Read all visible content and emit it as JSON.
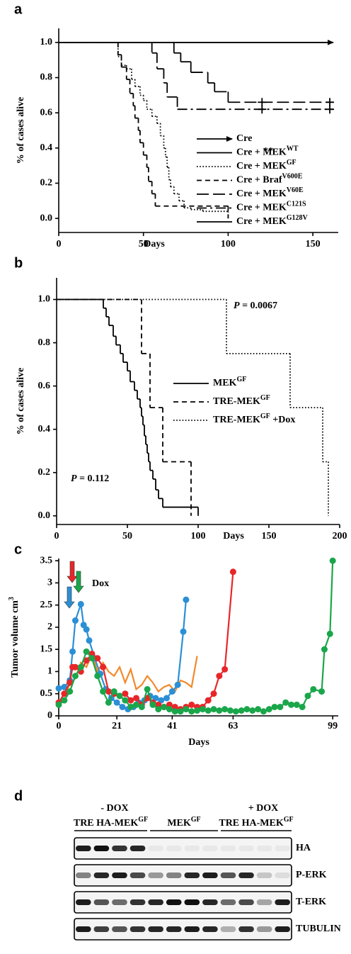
{
  "chart_data": [
    {
      "type": "line",
      "step": true,
      "panel_label": "a",
      "ylabel": "% of cases alive",
      "xlabel": "Days",
      "xlim": [
        0,
        165
      ],
      "ylim": [
        -0.08,
        1.08
      ],
      "xticks": [
        0,
        50,
        100,
        150
      ],
      "yticks": [
        {
          "value": 0,
          "label": "0.0"
        },
        0.2,
        0.4,
        0.6,
        0.8,
        {
          "value": 1,
          "label": "1.0"
        }
      ],
      "annotations": [
        {
          "text": "**"
        }
      ],
      "series": [
        {
          "name": "Cre",
          "color": "#000000",
          "style": "solid",
          "arrow": true,
          "x": [
            0,
            162
          ],
          "values": [
            1,
            1
          ]
        },
        {
          "name": "Cre + MEK",
          "sup": "WT",
          "color": "#000000",
          "style": "solid",
          "x": [
            0,
            162
          ],
          "values": [
            1,
            1
          ]
        },
        {
          "name": "Cre + MEK",
          "sup": "GF",
          "color": "#000000",
          "style": "dotted",
          "x": [
            0,
            35,
            37,
            40,
            43,
            45,
            48,
            50,
            52,
            55,
            58,
            60,
            62,
            63,
            64,
            65,
            66,
            68,
            71,
            74,
            78,
            85,
            100
          ],
          "values": [
            1,
            0.92,
            0.87,
            0.85,
            0.79,
            0.75,
            0.7,
            0.67,
            0.62,
            0.58,
            0.54,
            0.47,
            0.4,
            0.35,
            0.29,
            0.22,
            0.18,
            0.14,
            0.1,
            0.06,
            0.05,
            0.04,
            0
          ]
        },
        {
          "name": "Cre + Braf",
          "sup": "V600E",
          "color": "#000000",
          "style": "dashed",
          "x": [
            0,
            35,
            37,
            40,
            42,
            44,
            45,
            47,
            48,
            50,
            52,
            53,
            55,
            57,
            100
          ],
          "values": [
            1,
            0.93,
            0.86,
            0.79,
            0.71,
            0.64,
            0.57,
            0.5,
            0.43,
            0.36,
            0.29,
            0.21,
            0.14,
            0.07,
            0
          ]
        },
        {
          "name": "Cre + MEK",
          "sup": "V60E",
          "color": "#000000",
          "style": "long-dashed",
          "x": [
            0,
            68,
            72,
            78,
            88,
            92,
            100,
            162
          ],
          "values": [
            1,
            0.94,
            0.89,
            0.83,
            0.77,
            0.72,
            0.66,
            0.66
          ],
          "censored_x": [
            120,
            160
          ]
        },
        {
          "name": "Cre + MEK",
          "sup": "C121S",
          "color": "#000000",
          "style": "dash-dot",
          "x": [
            0,
            55,
            58,
            62,
            64,
            70,
            162
          ],
          "values": [
            1,
            0.94,
            0.85,
            0.77,
            0.69,
            0.62,
            0.62
          ],
          "censored_x": [
            120,
            160
          ]
        },
        {
          "name": "Cre + MEK",
          "sup": "G128V",
          "color": "#000000",
          "style": "solid",
          "x": [
            0,
            162
          ],
          "values": [
            1,
            1
          ]
        }
      ]
    },
    {
      "type": "line",
      "step": true,
      "panel_label": "b",
      "ylabel": "% of cases alive",
      "xlabel": "Days",
      "xlim": [
        0,
        200
      ],
      "ylim": [
        -0.04,
        1.1
      ],
      "xticks": [
        0,
        50,
        100,
        150,
        200
      ],
      "yticks": [
        {
          "value": 0,
          "label": "0.0"
        },
        0.2,
        0.4,
        0.6,
        0.8,
        {
          "value": 1,
          "label": "1.0"
        }
      ],
      "annotations": [
        {
          "italic": "P",
          "text": " = 0.0067"
        },
        {
          "italic": "P",
          "text": " = 0.112"
        }
      ],
      "series": [
        {
          "name": "MEK",
          "sup": "GF",
          "color": "#000000",
          "style": "solid",
          "x": [
            0,
            33,
            35,
            37,
            40,
            42,
            45,
            47,
            50,
            52,
            55,
            57,
            59,
            60,
            61,
            62,
            63,
            64,
            65,
            66,
            68,
            70,
            72,
            75,
            100
          ],
          "values": [
            1,
            0.96,
            0.92,
            0.88,
            0.83,
            0.79,
            0.75,
            0.71,
            0.67,
            0.62,
            0.58,
            0.54,
            0.5,
            0.46,
            0.42,
            0.37,
            0.33,
            0.29,
            0.25,
            0.21,
            0.17,
            0.12,
            0.08,
            0.04,
            0
          ]
        },
        {
          "name": "TRE-MEK",
          "sup": "GF",
          "color": "#000000",
          "style": "dashed",
          "x": [
            0,
            60,
            66,
            75,
            95
          ],
          "values": [
            1,
            0.75,
            0.5,
            0.25,
            0
          ]
        },
        {
          "name": "TRE-MEK",
          "sup": "GF",
          "suffix": " +Dox",
          "color": "#000000",
          "style": "dotted",
          "x": [
            0,
            120,
            165,
            188,
            192
          ],
          "values": [
            1,
            0.75,
            0.5,
            0.25,
            0
          ]
        }
      ]
    },
    {
      "type": "line",
      "step": false,
      "panel_label": "c",
      "ylabel": "Tumor volume cm",
      "ylabel_sup": "3",
      "xlabel": "Days",
      "xlim": [
        0,
        101
      ],
      "ylim": [
        0,
        3.55
      ],
      "xticks": [
        0,
        21,
        41,
        63,
        99
      ],
      "yticks": [
        0,
        0.5,
        1,
        1.5,
        2,
        2.5,
        3,
        3.5
      ],
      "annotations": [
        {
          "text": "Dox"
        }
      ],
      "series": [
        {
          "color": "#f08a2c",
          "marker": false,
          "x": [
            0,
            2,
            4,
            6,
            8,
            10,
            12,
            14,
            16,
            18,
            20,
            22,
            24,
            26,
            28,
            30,
            32,
            34,
            36,
            38,
            40,
            42,
            44,
            46,
            48,
            50
          ],
          "values": [
            0.3,
            0.5,
            0.7,
            0.85,
            1.2,
            1.1,
            1.4,
            1.0,
            1.2,
            1.0,
            0.9,
            1.1,
            0.75,
            1.05,
            0.6,
            0.7,
            0.9,
            0.75,
            0.55,
            0.65,
            0.7,
            0.55,
            0.8,
            0.75,
            0.65,
            1.35
          ]
        },
        {
          "color": "#2b8fd6",
          "marker": true,
          "x": [
            0,
            2,
            4,
            5,
            6,
            8,
            9,
            10,
            11,
            13,
            15,
            17,
            19,
            21,
            23,
            25,
            27,
            29,
            31,
            33,
            35,
            37,
            39,
            41,
            43,
            45,
            46
          ],
          "values": [
            0.62,
            0.65,
            0.8,
            1.45,
            2.15,
            2.52,
            2.05,
            1.95,
            1.7,
            1.3,
            0.95,
            0.6,
            0.4,
            0.3,
            0.2,
            0.15,
            0.2,
            0.3,
            0.35,
            0.45,
            0.4,
            0.35,
            0.4,
            0.55,
            0.7,
            1.9,
            2.62
          ]
        },
        {
          "color": "#e8262a",
          "marker": true,
          "x": [
            0,
            2,
            4,
            5,
            6,
            8,
            10,
            12,
            14,
            16,
            18,
            20,
            22,
            24,
            26,
            28,
            30,
            32,
            34,
            36,
            38,
            40,
            42,
            44,
            46,
            48,
            50,
            52,
            54,
            56,
            58,
            60,
            63
          ],
          "values": [
            0.3,
            0.5,
            0.75,
            1.1,
            1.1,
            1.0,
            1.25,
            1.4,
            1.3,
            1.1,
            0.55,
            0.5,
            0.45,
            0.5,
            0.35,
            0.4,
            0.25,
            0.4,
            0.3,
            0.25,
            0.2,
            0.25,
            0.2,
            0.15,
            0.2,
            0.25,
            0.2,
            0.2,
            0.35,
            0.5,
            0.9,
            1.05,
            3.25
          ]
        },
        {
          "color": "#1aa64a",
          "marker": true,
          "x": [
            0,
            2,
            4,
            6,
            8,
            10,
            12,
            14,
            16,
            18,
            20,
            22,
            24,
            26,
            28,
            30,
            32,
            34,
            36,
            38,
            40,
            42,
            44,
            46,
            48,
            50,
            52,
            54,
            56,
            58,
            60,
            62,
            64,
            66,
            68,
            70,
            72,
            74,
            76,
            78,
            80,
            82,
            84,
            86,
            88,
            90,
            92,
            95,
            96,
            98,
            99
          ],
          "values": [
            0.25,
            0.35,
            0.55,
            0.9,
            1.1,
            1.45,
            1.3,
            0.9,
            0.55,
            0.3,
            0.55,
            0.45,
            0.35,
            0.2,
            0.25,
            0.2,
            0.6,
            0.25,
            0.15,
            0.2,
            0.15,
            0.1,
            0.1,
            0.15,
            0.1,
            0.12,
            0.15,
            0.12,
            0.15,
            0.12,
            0.15,
            0.12,
            0.1,
            0.12,
            0.15,
            0.12,
            0.15,
            0.1,
            0.15,
            0.2,
            0.2,
            0.3,
            0.25,
            0.25,
            0.2,
            0.45,
            0.6,
            0.55,
            1.5,
            1.85,
            3.5
          ]
        }
      ]
    }
  ],
  "blot": {
    "panel_label": "d",
    "conditions": [
      "- DOX",
      "+ DOX"
    ],
    "groups": [
      {
        "name": "TRE HA-MEK",
        "sup": "GF"
      },
      {
        "name": "MEK",
        "sup": "GF"
      },
      {
        "name": "TRE HA-MEK",
        "sup": "GF"
      }
    ],
    "rows": [
      "HA",
      "P-ERK",
      "T-ERK",
      "TUBULIN"
    ]
  }
}
